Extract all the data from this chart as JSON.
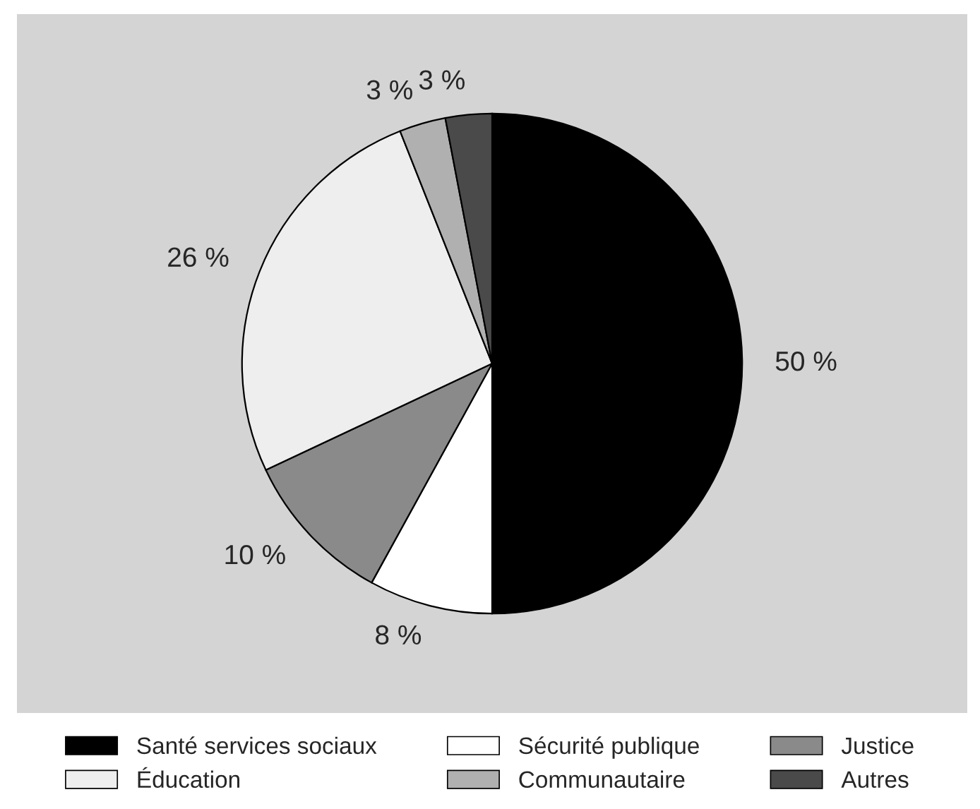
{
  "chart_data": {
    "type": "pie",
    "categories": [
      "Santé services sociaux",
      "Sécurité publique",
      "Justice",
      "Éducation",
      "Communautaire",
      "Autres"
    ],
    "values": [
      50,
      8,
      10,
      26,
      3,
      3
    ],
    "value_labels": [
      "50 %",
      "8 %",
      "10 %",
      "26 %",
      "3 %",
      "3 %"
    ],
    "colors": [
      "#000000",
      "#ffffff",
      "#8a8a8a",
      "#eeeeee",
      "#b0b0b0",
      "#4a4a4a"
    ],
    "legend": "bottom"
  }
}
